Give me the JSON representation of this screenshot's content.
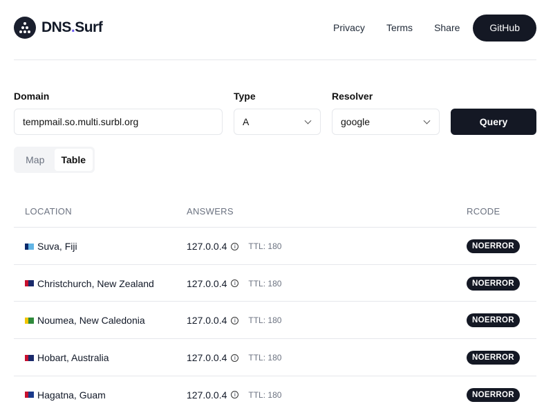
{
  "header": {
    "brand_main": "DNS",
    "brand_dot": ".",
    "brand_suffix": "Surf",
    "nav": [
      "Privacy",
      "Terms",
      "Share"
    ],
    "github": "GitHub"
  },
  "form": {
    "domain_label": "Domain",
    "domain_value": "tempmail.so.multi.surbl.org",
    "type_label": "Type",
    "type_value": "A",
    "resolver_label": "Resolver",
    "resolver_value": "google",
    "query_button": "Query"
  },
  "view_toggle": {
    "map": "Map",
    "table": "Table",
    "selected": "Table"
  },
  "table": {
    "headers": [
      "LOCATION",
      "ANSWERS",
      "RCODE"
    ],
    "rows": [
      {
        "location": "Suva, Fiji",
        "flag_colors": [
          "#62b5e5",
          "#0c2a6b"
        ],
        "answer": "127.0.0.4",
        "ttl": "TTL: 180",
        "rcode": "NOERROR"
      },
      {
        "location": "Christchurch, New Zealand",
        "flag_colors": [
          "#1a2a6b",
          "#c8102e"
        ],
        "answer": "127.0.0.4",
        "ttl": "TTL: 180",
        "rcode": "NOERROR"
      },
      {
        "location": "Noumea, New Caledonia",
        "flag_colors": [
          "#2f8a3c",
          "#f2c500"
        ],
        "answer": "127.0.0.4",
        "ttl": "TTL: 180",
        "rcode": "NOERROR"
      },
      {
        "location": "Hobart, Australia",
        "flag_colors": [
          "#1a2a6b",
          "#c8102e"
        ],
        "answer": "127.0.0.4",
        "ttl": "TTL: 180",
        "rcode": "NOERROR"
      },
      {
        "location": "Hagatna, Guam",
        "flag_colors": [
          "#1a3a8b",
          "#c8102e"
        ],
        "answer": "127.0.0.4",
        "ttl": "TTL: 180",
        "rcode": "NOERROR"
      }
    ]
  },
  "colors": {
    "accent": "#6d5bf0",
    "dark": "#141824"
  }
}
